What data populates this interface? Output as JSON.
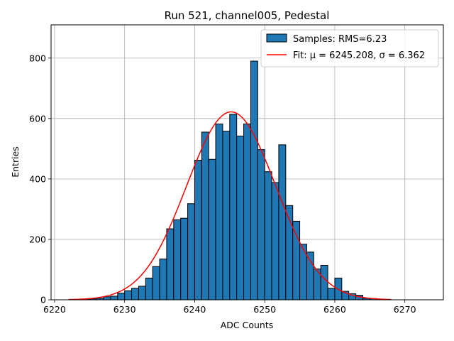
{
  "chart_data": {
    "type": "bar",
    "title": "Run 521, channel005, Pedestal",
    "xlabel": "ADC Counts",
    "ylabel": "Entries",
    "xlim": [
      6219.5,
      6275.5
    ],
    "ylim": [
      0,
      910
    ],
    "xticks": [
      6220,
      6230,
      6240,
      6250,
      6260,
      6270
    ],
    "yticks": [
      0,
      200,
      400,
      600,
      800
    ],
    "grid": true,
    "legend_position": "top-right",
    "bin_width": 1,
    "series": [
      {
        "name": "Samples: RMS=6.23",
        "kind": "histogram",
        "color": "#1f77b4",
        "edgecolor": "#000000",
        "bin_edges_start": 6222,
        "values": [
          0,
          1,
          1,
          3,
          5,
          10,
          12,
          22,
          30,
          38,
          45,
          72,
          110,
          135,
          235,
          265,
          270,
          318,
          462,
          555,
          465,
          582,
          558,
          614,
          542,
          582,
          790,
          497,
          424,
          388,
          513,
          312,
          260,
          184,
          158,
          102,
          114,
          38,
          72,
          28,
          20,
          15,
          5,
          4,
          2,
          1
        ]
      },
      {
        "name": "Fit: μ = 6245.208, σ = 6.362",
        "kind": "gaussian-fit",
        "color": "#ff0000",
        "mu": 6245.208,
        "sigma": 6.362,
        "peak": 622,
        "x_range": [
          6222,
          6268
        ]
      }
    ]
  }
}
